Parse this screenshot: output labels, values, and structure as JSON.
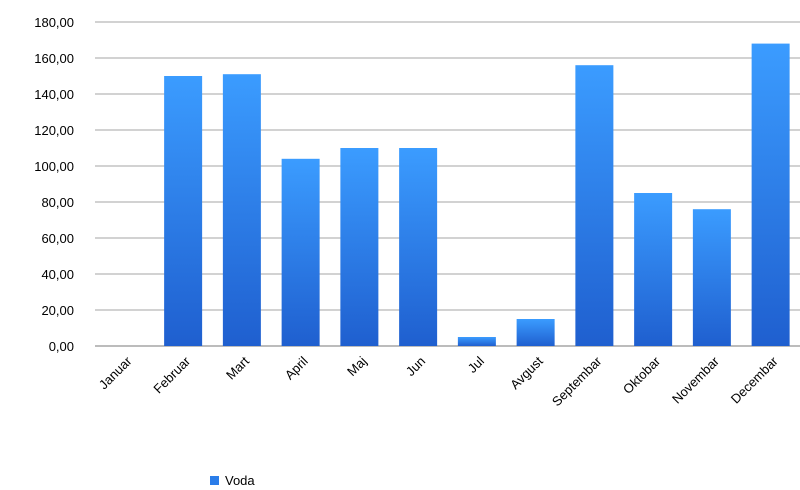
{
  "chart_data": {
    "type": "bar",
    "categories": [
      "Januar",
      "Februar",
      "Mart",
      "April",
      "Maj",
      "Jun",
      "Jul",
      "Avgust",
      "Septembar",
      "Oktobar",
      "Novembar",
      "Decembar"
    ],
    "series": [
      {
        "name": "Voda",
        "values": [
          0,
          150,
          151,
          104,
          110,
          110,
          5,
          15,
          156,
          85,
          76,
          168
        ]
      }
    ],
    "ylim": [
      0,
      180
    ],
    "yticks": [
      "0,00",
      "20,00",
      "40,00",
      "60,00",
      "80,00",
      "100,00",
      "120,00",
      "140,00",
      "160,00",
      "180,00"
    ],
    "grid": true,
    "legend_position": "bottom-left",
    "colors": {
      "bar_top": "#3b9cff",
      "bar_bottom": "#1f5fcf",
      "grid": "#a6a6a6",
      "legend": "#2b7de9"
    }
  }
}
